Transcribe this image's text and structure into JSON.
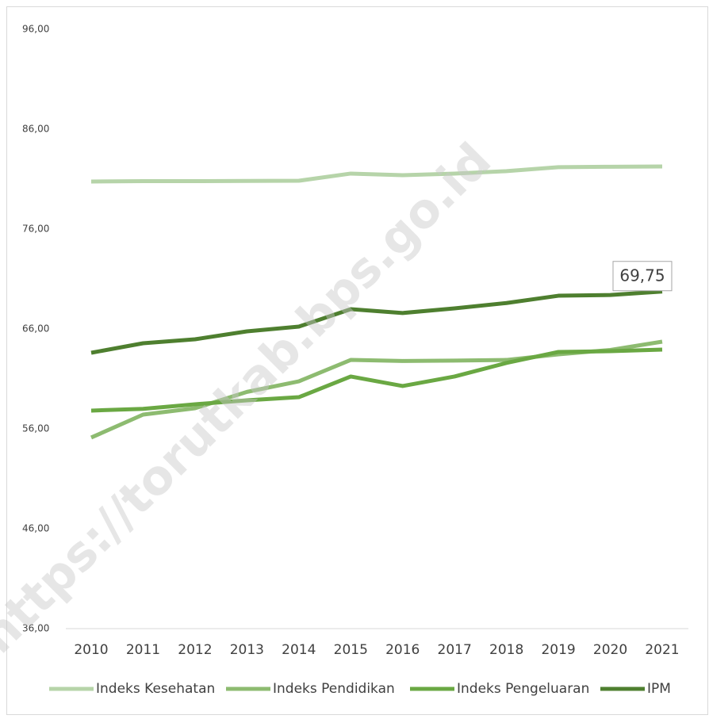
{
  "chart_data": {
    "type": "line",
    "watermark": "https://torutkab.bps.go.id",
    "categories": [
      "2010",
      "2011",
      "2012",
      "2013",
      "2014",
      "2015",
      "2016",
      "2017",
      "2018",
      "2019",
      "2020",
      "2021"
    ],
    "series": [
      {
        "name": "Indeks Kesehatan",
        "color": "#b6d4a9",
        "values": [
          80.76,
          80.8,
          80.8,
          80.82,
          80.84,
          81.56,
          81.4,
          81.56,
          81.8,
          82.2,
          82.24,
          82.27
        ]
      },
      {
        "name": "Indeks Pendidikan",
        "color": "#8dbb70",
        "values": [
          55.13,
          57.43,
          58.06,
          59.7,
          60.76,
          62.9,
          62.8,
          62.84,
          62.9,
          63.46,
          63.9,
          64.73
        ]
      },
      {
        "name": "Indeks Pengeluaran",
        "color": "#6aa843",
        "values": [
          57.83,
          58.0,
          58.46,
          58.86,
          59.17,
          61.24,
          60.29,
          61.24,
          62.6,
          63.7,
          63.78,
          63.94
        ]
      },
      {
        "name": "IPM",
        "color": "#4e7f2f",
        "values": [
          63.62,
          64.57,
          64.97,
          65.76,
          66.24,
          67.98,
          67.6,
          68.06,
          68.6,
          69.33,
          69.4,
          69.75
        ],
        "value_labels": [
          null,
          null,
          null,
          null,
          null,
          null,
          null,
          null,
          null,
          null,
          null,
          "69,75"
        ]
      }
    ],
    "ylim": [
      36,
      96
    ],
    "yticks": [
      {
        "value": 36,
        "label": "36,00"
      },
      {
        "value": 46,
        "label": "46,00"
      },
      {
        "value": 56,
        "label": "56,00"
      },
      {
        "value": 66,
        "label": "66,00"
      },
      {
        "value": 76,
        "label": "76,00"
      },
      {
        "value": 86,
        "label": "86,00"
      },
      {
        "value": 96,
        "label": "96,00"
      }
    ],
    "grid": false,
    "legend": "bottom"
  }
}
